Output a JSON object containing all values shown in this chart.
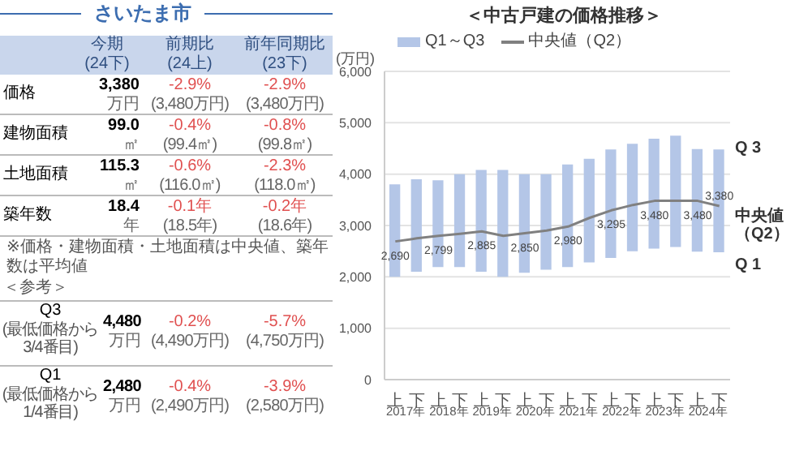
{
  "chart_data": [
    {
      "type": "other",
      "title": "さいたま市",
      "annotations": [
        "今期",
        "(24下)",
        "前期比",
        "(24上)",
        "前年同期比",
        "(23下)",
        "価格",
        "3,380",
        "万円",
        "-2.9%",
        "(3,480万円)",
        "-2.9%",
        "(3,480万円)",
        "建物面積",
        "99.0",
        "㎡",
        "-0.4%",
        "(99.4㎡)",
        "-0.8%",
        "(99.8㎡)",
        "土地面積",
        "115.3",
        "㎡",
        "-0.6%",
        "(116.0㎡)",
        "-2.3%",
        "(118.0㎡)",
        "築年数",
        "18.4",
        "年",
        "-0.1年",
        "(18.5年)",
        "-0.2年",
        "(18.6年)",
        "※価格・建物面積・土地面積は中央値、築年数は平均値",
        "＜参考＞",
        "Q3",
        "(最低価格から3/4番目)",
        "4,480",
        "万円",
        "-0.2%",
        "(4,490万円)",
        "-5.7%",
        "(4,750万円)",
        "Q1",
        "(最低価格から1/4番目)",
        "2,480",
        "万円",
        "-0.4%",
        "(2,490万円)",
        "-3.9%",
        "(2,580万円)"
      ]
    },
    {
      "type": "bar",
      "title": "＜中古戸建の価格推移＞",
      "ylabel": "(万円)",
      "categories": [
        "上",
        "下",
        "上",
        "下",
        "上",
        "下",
        "上",
        "下",
        "上",
        "下",
        "上",
        "下",
        "上",
        "下",
        "上",
        "下"
      ],
      "ylim": [
        0,
        6000
      ],
      "yticks": [
        0,
        {
          "value": 1000,
          "label": "1,000"
        },
        {
          "value": 2000,
          "label": "2,000"
        },
        {
          "value": 3000,
          "label": "3,000"
        },
        {
          "value": 4000,
          "label": "4,000"
        },
        {
          "value": 5000,
          "label": "5,000"
        },
        {
          "value": 6000,
          "label": "6,000"
        }
      ],
      "grid": "y",
      "legend": "top",
      "marker": "none",
      "series": [
        {
          "name": "Q1～Q3",
          "type": "bar",
          "color": "#b4c6e7",
          "base": [
            2000,
            2100,
            2190,
            2190,
            2100,
            2000,
            2080,
            2140,
            2190,
            2280,
            2370,
            2500,
            2550,
            2580,
            2490,
            2480
          ],
          "values": [
            1800,
            1800,
            1690,
            1810,
            1980,
            2080,
            1920,
            1860,
            2000,
            2020,
            2110,
            2090,
            2140,
            2170,
            2000,
            2000
          ]
        },
        {
          "name": "中央値（Q2）",
          "type": "line",
          "color": "#808080",
          "values": [
            2690,
            2750,
            2799,
            2840,
            2885,
            2800,
            2850,
            2900,
            2980,
            3150,
            3295,
            3400,
            3480,
            3480,
            3480,
            3380
          ],
          "value_labels": [
            "2,690",
            null,
            "2,799",
            null,
            "2,885",
            null,
            "2,850",
            null,
            "2,980",
            null,
            "3,295",
            null,
            "3,480",
            null,
            "3,480",
            "3,380"
          ]
        }
      ],
      "annotations": [
        "Q 3",
        "中央値（Q2）",
        "Q 1",
        "2017年",
        "2018年",
        "2019年",
        "2020年",
        "2021年",
        "2022年",
        "2023年",
        "2024年"
      ]
    }
  ]
}
